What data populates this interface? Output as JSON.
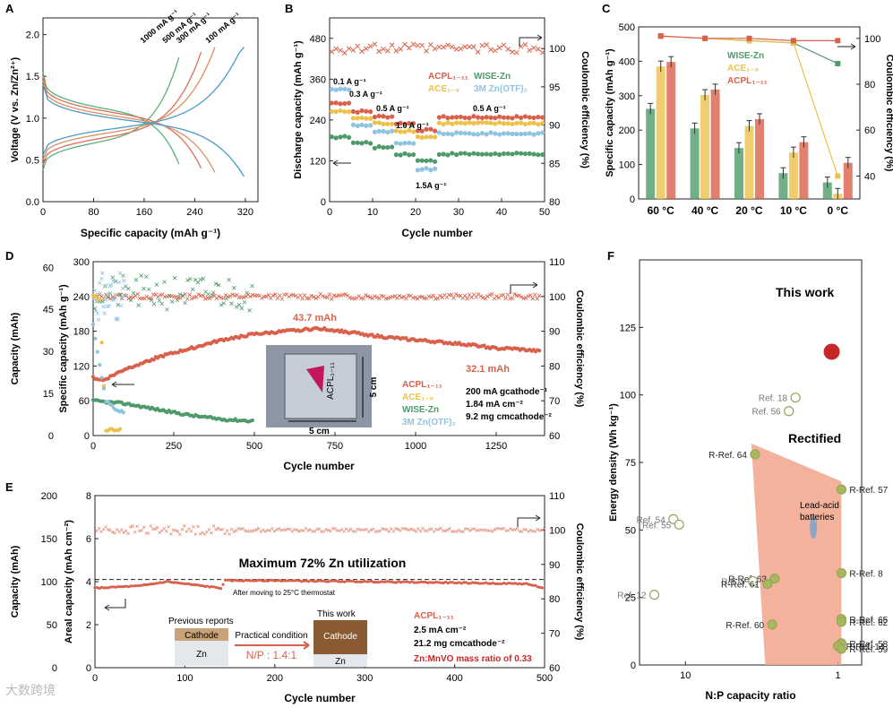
{
  "chart_data": [
    {
      "panel": "A",
      "type": "line",
      "xlabel": "Specific capacity (mAh g⁻¹)",
      "ylabel": "Voltage (V vs. Zn/Zn²⁺)",
      "xlim": [
        0,
        340
      ],
      "ylim": [
        0,
        2.2
      ],
      "xticks": [
        0,
        80,
        160,
        240,
        320
      ],
      "yticks": [
        0,
        0.5,
        1.0,
        1.5,
        2.0
      ],
      "series": [
        {
          "name": "1000 mA g⁻¹",
          "color": "#5ab07a",
          "capacity": 215
        },
        {
          "name": "500 mA g⁻¹",
          "color": "#d9705a",
          "capacity": 250
        },
        {
          "name": "300 mA g⁻¹",
          "color": "#e09060",
          "capacity": 272
        },
        {
          "name": "100 mA g⁻¹",
          "color": "#4a9cc8",
          "capacity": 318
        }
      ]
    },
    {
      "panel": "B",
      "type": "scatter",
      "xlabel": "Cycle number",
      "ylabel": "Discharge capacity (mAh g⁻¹)",
      "y2label": "Coulombic efficiency (%)",
      "xlim": [
        0,
        50
      ],
      "ylim": [
        0,
        540
      ],
      "y2lim": [
        80,
        104
      ],
      "xticks": [
        0,
        10,
        20,
        30,
        40,
        50
      ],
      "yticks": [
        0,
        120,
        240,
        360,
        480
      ],
      "y2ticks": [
        80,
        85,
        90,
        95,
        100
      ],
      "rate_labels": [
        "0.1 A g⁻¹",
        "0.3 A g⁻¹",
        "0.5 A g⁻¹",
        "1.0 A g⁻¹",
        "1.5A g⁻¹",
        "0.5 A g⁻¹"
      ],
      "legend": [
        "ACPL₁₋₁₁",
        "ACE₁₋₉",
        "WISE-Zn",
        "3M Zn(OTF)₂"
      ],
      "series": [
        {
          "name": "ACPL₁₋₁₁",
          "color": "#d9604a",
          "segments": [
            [
              0,
              5,
              290
            ],
            [
              5,
              10,
              265
            ],
            [
              10,
              15,
              250
            ],
            [
              15,
              20,
              230
            ],
            [
              20,
              25,
              210
            ],
            [
              25,
              50,
              248
            ]
          ]
        },
        {
          "name": "ACE₁₋₉",
          "color": "#ecc24a",
          "segments": [
            [
              0,
              5,
              265
            ],
            [
              5,
              10,
              245
            ],
            [
              10,
              15,
              230
            ],
            [
              15,
              20,
              208
            ],
            [
              20,
              25,
              190
            ],
            [
              25,
              50,
              230
            ]
          ]
        },
        {
          "name": "3M Zn(OTF)₂",
          "color": "#8fc4e0",
          "segments": [
            [
              0,
              5,
              330
            ],
            [
              5,
              10,
              225
            ],
            [
              10,
              15,
              205
            ],
            [
              15,
              20,
              170
            ],
            [
              20,
              25,
              95
            ],
            [
              25,
              50,
              200
            ]
          ]
        },
        {
          "name": "WISE-Zn",
          "color": "#4f9a6a",
          "segments": [
            [
              0,
              5,
              190
            ],
            [
              5,
              10,
              172
            ],
            [
              10,
              15,
              160
            ],
            [
              15,
              20,
              140
            ],
            [
              20,
              25,
              120
            ],
            [
              25,
              50,
              140
            ]
          ]
        }
      ],
      "ce_series": {
        "name": "CE",
        "color": "#d9604a",
        "level": 100
      }
    },
    {
      "panel": "C",
      "type": "bar",
      "ylabel": "Specific capacity (mAh g⁻¹)",
      "y2label": "Coulombic efficiency (%)",
      "categories": [
        "60 °C",
        "40 °C",
        "20 °C",
        "10 °C",
        "0 °C"
      ],
      "ylim": [
        0,
        500
      ],
      "y2lim": [
        30,
        105
      ],
      "yticks": [
        0,
        100,
        200,
        300,
        400,
        500
      ],
      "y2ticks": [
        40,
        60,
        80,
        100
      ],
      "series": [
        {
          "name": "WISE-Zn",
          "color": "#4f9a6a",
          "values": [
            262,
            205,
            148,
            75,
            48
          ]
        },
        {
          "name": "ACE₁₋₉",
          "color": "#ecc24a",
          "values": [
            385,
            302,
            212,
            135,
            15
          ]
        },
        {
          "name": "ACPL₁₋₁₁",
          "color": "#d9604a",
          "values": [
            398,
            318,
            232,
            165,
            105
          ]
        }
      ],
      "ce_series": [
        {
          "name": "WISE-Zn",
          "color": "#4f9a6a",
          "values": [
            101,
            100,
            99,
            98,
            89
          ]
        },
        {
          "name": "ACE₁₋₉",
          "color": "#ecc24a",
          "values": [
            101,
            100,
            99,
            98,
            40
          ]
        },
        {
          "name": "ACPL₁₋₁₁",
          "color": "#d9604a",
          "values": [
            101,
            100,
            100,
            99,
            99
          ]
        }
      ]
    },
    {
      "panel": "D",
      "type": "scatter",
      "xlabel": "Cycle number",
      "ylabel": "Capacity (mAh)",
      "ylabel2": "Specific capacity (mAh g⁻¹)",
      "y2label": "Coulombic efficiency (%)",
      "xlim": [
        0,
        1400
      ],
      "ylim": [
        0,
        300
      ],
      "y2lim": [
        60,
        110
      ],
      "xticks": [
        0,
        250,
        500,
        750,
        1000,
        1250
      ],
      "yticks_mah": [
        0,
        15,
        30,
        45,
        60
      ],
      "yticks": [
        0,
        60,
        120,
        180,
        240,
        300
      ],
      "y2ticks": [
        60,
        70,
        80,
        90,
        100,
        110
      ],
      "annotations": [
        "43.7 mAh",
        "32.1 mAh"
      ],
      "conditions": [
        "200 mA gcathode⁻¹",
        "1.84 mA cm⁻²",
        "9.2 mg cmcathode⁻²"
      ],
      "inset_labels": [
        "5 cm",
        "5 cm",
        "ACPL₁₋₁₁"
      ],
      "legend": [
        "ACPL₁₋₁₁",
        "ACE₁₋₉",
        "WISE-Zn",
        "3M Zn(OTF)₂"
      ],
      "series": [
        {
          "name": "ACPL₁₋₁₁",
          "color": "#d9604a",
          "points": [
            [
              0,
              100
            ],
            [
              30,
              95
            ],
            [
              100,
              115
            ],
            [
              200,
              135
            ],
            [
              300,
              150
            ],
            [
              400,
              165
            ],
            [
              500,
              175
            ],
            [
              600,
              180
            ],
            [
              700,
              185
            ],
            [
              800,
              178
            ],
            [
              900,
              170
            ],
            [
              1000,
              165
            ],
            [
              1100,
              160
            ],
            [
              1200,
              155
            ],
            [
              1250,
              150
            ],
            [
              1300,
              150
            ],
            [
              1390,
              145
            ]
          ]
        },
        {
          "name": "ACE₁₋₉",
          "color": "#ecc24a",
          "points": [
            [
              0,
              240
            ],
            [
              20,
              235
            ],
            [
              40,
              10
            ],
            [
              90,
              10
            ]
          ]
        },
        {
          "name": "WISE-Zn",
          "color": "#4f9a6a",
          "points": [
            [
              0,
              60
            ],
            [
              100,
              55
            ],
            [
              200,
              45
            ],
            [
              300,
              35
            ],
            [
              400,
              28
            ],
            [
              500,
              25
            ]
          ]
        },
        {
          "name": "3M Zn(OTF)₂",
          "color": "#8fc4e0",
          "points": [
            [
              0,
              190
            ],
            [
              20,
              120
            ],
            [
              40,
              60
            ],
            [
              70,
              45
            ],
            [
              100,
              40
            ]
          ]
        }
      ]
    },
    {
      "panel": "E",
      "type": "scatter",
      "xlabel": "Cycle number",
      "ylabel": "Capacity (mAh)",
      "ylabel2": "Areal capacity (mAh cm⁻²)",
      "y2label": "Coulombic efficiency (%)",
      "xlim": [
        0,
        500
      ],
      "ylim": [
        0,
        8
      ],
      "y2lim": [
        60,
        110
      ],
      "xticks": [
        0,
        100,
        200,
        300,
        400,
        500
      ],
      "yticks_mah": [
        0,
        50,
        100,
        150,
        200
      ],
      "yticks": [
        0,
        2,
        4,
        6,
        8
      ],
      "y2ticks": [
        60,
        70,
        80,
        90,
        100,
        110
      ],
      "title_text": "Maximum 72% Zn utilization",
      "note": "After moving to 25°C thermostat",
      "conditions": [
        "ACPL₁₋₁₁",
        "2.5 mA cm⁻²",
        "21.2 mg cmcathode⁻²",
        "Zn:MnVO mass ratio of 0.33"
      ],
      "inset": {
        "previous": "Previous reports",
        "this_work": "This work",
        "cathode": "Cathode",
        "zn": "Zn",
        "arrow": "Practical condition",
        "np": "N/P : 1.4:1"
      },
      "series": [
        {
          "name": "ACPL₁₋₁₁",
          "color": "#d9604a",
          "points": [
            [
              0,
              3.7
            ],
            [
              50,
              3.8
            ],
            [
              80,
              4.0
            ],
            [
              140,
              3.7
            ],
            [
              145,
              4.05
            ],
            [
              200,
              4.05
            ],
            [
              300,
              4.0
            ],
            [
              400,
              3.95
            ],
            [
              480,
              3.9
            ],
            [
              500,
              3.7
            ]
          ]
        }
      ]
    },
    {
      "panel": "F",
      "type": "scatter",
      "xlabel": "N:P capacity ratio",
      "ylabel": "Energy density (Wh kg⁻¹)",
      "xlim_log": [
        20,
        0.7
      ],
      "ylim": [
        0,
        150
      ],
      "xticks": [
        10,
        1
      ],
      "yticks": [
        0,
        25,
        50,
        75,
        100,
        125
      ],
      "labels": {
        "this_work": "This work",
        "rectified": "Rectified",
        "lead_acid": "Lead-acid batteries"
      },
      "points": [
        {
          "name": "This work",
          "x": 1.1,
          "y": 116
        },
        {
          "name": "Ref. 18",
          "x": 1.9,
          "y": 99
        },
        {
          "name": "Ref. 56",
          "x": 2.1,
          "y": 94
        },
        {
          "name": "R-Ref. 64",
          "x": 3.5,
          "y": 78
        },
        {
          "name": "R-Ref. 57",
          "x": 0.95,
          "y": 65
        },
        {
          "name": "Ref. 54",
          "x": 12,
          "y": 54
        },
        {
          "name": "Ref. 55",
          "x": 11,
          "y": 52
        },
        {
          "name": "R-Ref. 63",
          "x": 2.6,
          "y": 32
        },
        {
          "name": "Ref. 5",
          "x": 3.6,
          "y": 31
        },
        {
          "name": "R-Ref. 8",
          "x": 0.95,
          "y": 34
        },
        {
          "name": "R-Ref. 61",
          "x": 2.9,
          "y": 30
        },
        {
          "name": "Ref. 12",
          "x": 16,
          "y": 26
        },
        {
          "name": "R-Ref. 65",
          "x": 0.95,
          "y": 17
        },
        {
          "name": "R-Ref. 62",
          "x": 0.95,
          "y": 16
        },
        {
          "name": "R-Ref. 60",
          "x": 2.7,
          "y": 15
        },
        {
          "name": "R-Ref. 58",
          "x": 0.95,
          "y": 8
        },
        {
          "name": "R-Ref. 14",
          "x": 1.0,
          "y": 7
        },
        {
          "name": "R-Ref. 59",
          "x": 0.95,
          "y": 6
        }
      ]
    }
  ],
  "panel_labels": [
    "A",
    "B",
    "C",
    "D",
    "E",
    "F"
  ],
  "watermark": "大数跨境"
}
